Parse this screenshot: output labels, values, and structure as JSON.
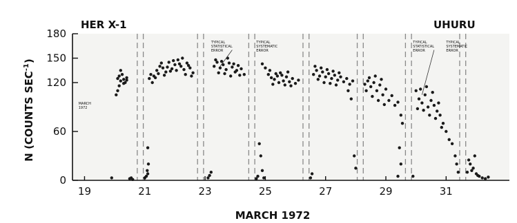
{
  "chart_data": {
    "type": "scatter",
    "title": "HER X-1",
    "subtitle": "UHURU",
    "xlabel": "MARCH 1972",
    "ylabel": "N (COUNTS SEC-1)",
    "ylabel_main": "N (COUNTS SEC",
    "ylabel_sup": "-1",
    "ylabel_close": ")",
    "xlim": [
      18.6,
      33.1
    ],
    "ylim": [
      0,
      180
    ],
    "x_ticks": [
      19,
      21,
      23,
      25,
      27,
      29,
      31
    ],
    "y_ticks": [
      0,
      60,
      120,
      150,
      180
    ],
    "grid": false,
    "annotations": [
      {
        "lines": [
          "MARCH",
          "1972"
        ],
        "x": 18.8,
        "y": 93
      },
      {
        "lines": [
          "TYPICAL",
          "STATISTICAL",
          "ERROR"
        ],
        "x": 23.2,
        "y": 168
      },
      {
        "lines": [
          "TYPICAL",
          "SYSTEMATIC",
          "ERROR"
        ],
        "x": 24.7,
        "y": 168
      },
      {
        "lines": [
          "TYPICAL",
          "STATISTICAL",
          "ERROR"
        ],
        "x": 29.9,
        "y": 168
      },
      {
        "lines": [
          "TYPICAL",
          "SYSTEMATIC",
          "ERROR"
        ],
        "x": 31.0,
        "y": 168
      }
    ],
    "data_gaps": [
      [
        20.75,
        20.95
      ],
      [
        22.75,
        22.95
      ],
      [
        24.45,
        24.65
      ],
      [
        26.25,
        26.45
      ],
      [
        28.05,
        28.25
      ],
      [
        29.65,
        29.85
      ],
      [
        31.45,
        31.65
      ]
    ],
    "series": [
      {
        "values": [
          [
            19.9,
            3
          ],
          [
            20.1,
            125
          ],
          [
            20.15,
            128
          ],
          [
            20.2,
            122
          ],
          [
            20.25,
            130
          ],
          [
            20.3,
            124
          ],
          [
            20.35,
            120
          ],
          [
            20.4,
            126
          ],
          [
            20.1,
            110
          ],
          [
            20.15,
            116
          ],
          [
            20.05,
            105
          ],
          [
            20.2,
            135
          ],
          [
            20.3,
            119
          ],
          [
            20.4,
            123
          ],
          [
            20.5,
            2
          ],
          [
            20.55,
            3
          ],
          [
            20.6,
            1
          ],
          [
            21.0,
            3
          ],
          [
            21.05,
            5
          ],
          [
            21.1,
            8
          ],
          [
            21.15,
            125
          ],
          [
            21.2,
            130
          ],
          [
            21.3,
            128
          ],
          [
            21.4,
            135
          ],
          [
            21.5,
            140
          ],
          [
            21.6,
            138
          ],
          [
            21.7,
            133
          ],
          [
            21.8,
            145
          ],
          [
            21.9,
            137
          ],
          [
            22.0,
            142
          ],
          [
            22.1,
            148
          ],
          [
            22.2,
            140
          ],
          [
            22.3,
            136
          ],
          [
            22.4,
            144
          ],
          [
            22.5,
            138
          ],
          [
            22.6,
            132
          ],
          [
            21.25,
            120
          ],
          [
            21.35,
            126
          ],
          [
            21.45,
            131
          ],
          [
            21.55,
            144
          ],
          [
            21.65,
            129
          ],
          [
            21.75,
            139
          ],
          [
            21.85,
            134
          ],
          [
            21.95,
            147
          ],
          [
            22.05,
            135
          ],
          [
            22.15,
            143
          ],
          [
            22.25,
            150
          ],
          [
            22.35,
            130
          ],
          [
            22.45,
            141
          ],
          [
            22.55,
            128
          ],
          [
            21.1,
            40
          ],
          [
            21.12,
            20
          ],
          [
            21.08,
            12
          ],
          [
            23.1,
            3
          ],
          [
            23.15,
            6
          ],
          [
            23.2,
            10
          ],
          [
            23.3,
            140
          ],
          [
            23.4,
            145
          ],
          [
            23.5,
            138
          ],
          [
            23.6,
            142
          ],
          [
            23.7,
            136
          ],
          [
            23.8,
            144
          ],
          [
            23.9,
            139
          ],
          [
            24.0,
            133
          ],
          [
            24.1,
            141
          ],
          [
            24.2,
            137
          ],
          [
            24.3,
            130
          ],
          [
            23.35,
            148
          ],
          [
            23.45,
            132
          ],
          [
            23.55,
            146
          ],
          [
            23.65,
            131
          ],
          [
            23.75,
            150
          ],
          [
            23.85,
            128
          ],
          [
            23.95,
            143
          ],
          [
            24.05,
            135
          ],
          [
            24.15,
            129
          ],
          [
            24.7,
            2
          ],
          [
            24.75,
            5
          ],
          [
            24.8,
            45
          ],
          [
            24.85,
            30
          ],
          [
            24.9,
            12
          ],
          [
            24.95,
            3
          ],
          [
            24.9,
            143
          ],
          [
            25.0,
            138
          ],
          [
            25.1,
            130
          ],
          [
            25.2,
            126
          ],
          [
            25.3,
            124
          ],
          [
            25.4,
            128
          ],
          [
            25.5,
            132
          ],
          [
            25.6,
            122
          ],
          [
            25.7,
            127
          ],
          [
            25.8,
            121
          ],
          [
            25.9,
            125
          ],
          [
            26.0,
            119
          ],
          [
            26.1,
            123
          ],
          [
            25.15,
            135
          ],
          [
            25.25,
            118
          ],
          [
            25.35,
            131
          ],
          [
            25.45,
            120
          ],
          [
            25.55,
            129
          ],
          [
            25.65,
            117
          ],
          [
            25.75,
            133
          ],
          [
            25.85,
            116
          ],
          [
            26.5,
            3
          ],
          [
            26.55,
            8
          ],
          [
            26.6,
            130
          ],
          [
            26.7,
            135
          ],
          [
            26.8,
            128
          ],
          [
            26.9,
            133
          ],
          [
            27.0,
            127
          ],
          [
            27.1,
            131
          ],
          [
            27.2,
            125
          ],
          [
            27.3,
            129
          ],
          [
            27.4,
            123
          ],
          [
            27.5,
            127
          ],
          [
            27.6,
            121
          ],
          [
            27.7,
            125
          ],
          [
            27.8,
            118
          ],
          [
            27.9,
            122
          ],
          [
            26.65,
            140
          ],
          [
            26.75,
            124
          ],
          [
            26.85,
            138
          ],
          [
            26.95,
            120
          ],
          [
            27.05,
            136
          ],
          [
            27.15,
            119
          ],
          [
            27.25,
            134
          ],
          [
            27.35,
            117
          ],
          [
            27.45,
            132
          ],
          [
            27.75,
            110
          ],
          [
            27.85,
            100
          ],
          [
            27.95,
            30
          ],
          [
            28.0,
            15
          ],
          [
            28.3,
            118
          ],
          [
            28.4,
            122
          ],
          [
            28.5,
            115
          ],
          [
            28.6,
            120
          ],
          [
            28.7,
            110
          ],
          [
            28.8,
            117
          ],
          [
            28.9,
            105
          ],
          [
            29.0,
            112
          ],
          [
            29.1,
            98
          ],
          [
            29.2,
            104
          ],
          [
            29.3,
            92
          ],
          [
            29.4,
            96
          ],
          [
            29.5,
            80
          ],
          [
            29.55,
            70
          ],
          [
            29.45,
            40
          ],
          [
            29.5,
            20
          ],
          [
            29.4,
            5
          ],
          [
            28.35,
            110
          ],
          [
            28.45,
            126
          ],
          [
            28.55,
            103
          ],
          [
            28.65,
            128
          ],
          [
            28.75,
            98
          ],
          [
            28.85,
            124
          ],
          [
            28.95,
            93
          ],
          [
            29.9,
            5
          ],
          [
            30.0,
            110
          ],
          [
            30.1,
            100
          ],
          [
            30.2,
            95
          ],
          [
            30.3,
            105
          ],
          [
            30.4,
            90
          ],
          [
            30.5,
            98
          ],
          [
            30.6,
            92
          ],
          [
            30.7,
            85
          ],
          [
            30.8,
            80
          ],
          [
            30.9,
            70
          ],
          [
            31.0,
            60
          ],
          [
            31.1,
            50
          ],
          [
            31.2,
            45
          ],
          [
            31.3,
            30
          ],
          [
            31.35,
            20
          ],
          [
            31.4,
            10
          ],
          [
            30.05,
            88
          ],
          [
            30.15,
            112
          ],
          [
            30.25,
            86
          ],
          [
            30.35,
            115
          ],
          [
            30.45,
            80
          ],
          [
            30.55,
            108
          ],
          [
            30.65,
            76
          ],
          [
            30.75,
            95
          ],
          [
            30.85,
            65
          ],
          [
            31.7,
            10
          ],
          [
            31.8,
            20
          ],
          [
            31.9,
            15
          ],
          [
            32.0,
            8
          ],
          [
            32.1,
            5
          ],
          [
            32.2,
            3
          ],
          [
            32.3,
            2
          ],
          [
            32.4,
            4
          ],
          [
            31.75,
            25
          ],
          [
            31.85,
            12
          ],
          [
            31.95,
            30
          ],
          [
            32.05,
            6
          ]
        ]
      }
    ]
  }
}
